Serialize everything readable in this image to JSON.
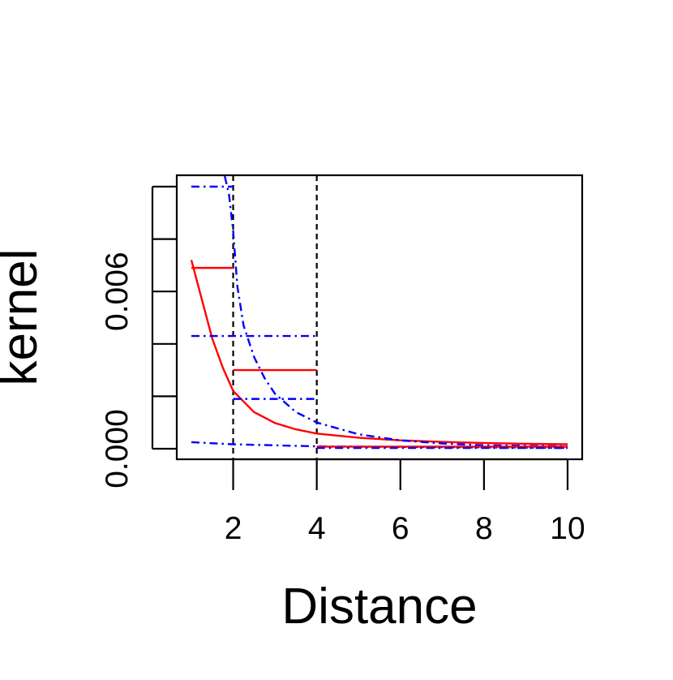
{
  "chart_data": {
    "type": "line",
    "title": "",
    "xlabel": "Distance",
    "ylabel": "kernel",
    "xlim": [
      1,
      10
    ],
    "ylim": [
      0,
      0.0102
    ],
    "x_ticks": [
      2,
      4,
      6,
      8,
      10
    ],
    "x_tick_labels": [
      "2",
      "4",
      "6",
      "8",
      "10"
    ],
    "y_ticks": [
      0,
      0.002,
      0.004,
      0.006,
      0.008,
      0.01
    ],
    "y_tick_labels": [
      "0.000",
      "",
      "",
      "0.006",
      "",
      ""
    ],
    "grid": false,
    "legend": null,
    "vlines": [
      2,
      4
    ],
    "series": [
      {
        "style": "solid",
        "color": "#ff0000",
        "x": [
          1.0,
          1.25,
          1.5,
          1.75,
          2.0,
          2.5,
          3.0,
          3.5,
          4.0,
          5.0,
          6.0,
          7.0,
          8.0,
          9.0,
          10.0
        ],
        "y": [
          0.0072,
          0.0057,
          0.0042,
          0.0031,
          0.0022,
          0.0014,
          0.00098,
          0.00074,
          0.00058,
          0.00042,
          0.00032,
          0.00026,
          0.00022,
          0.00019,
          0.00017
        ]
      },
      {
        "style": "dashdot",
        "color": "#0000ff",
        "x": [
          1.8,
          1.9,
          2.0,
          2.1,
          2.25,
          2.5,
          2.75,
          3.0,
          3.5,
          4.0,
          5.0,
          6.0,
          7.0,
          8.0,
          10.0
        ],
        "y": [
          0.0104,
          0.0097,
          0.0083,
          0.0062,
          0.0047,
          0.0035,
          0.0027,
          0.0021,
          0.0014,
          0.001,
          0.00055,
          0.00032,
          0.0002,
          0.00013,
          9e-05
        ]
      },
      {
        "style": "dashdot",
        "color": "#0000ff",
        "x": [
          1.0,
          2.0,
          4.0,
          10.0
        ],
        "y": [
          0.00025,
          0.00017,
          9e-05,
          3e-05
        ]
      }
    ],
    "segments": [
      {
        "color": "#ff0000",
        "style": "solid",
        "x": [
          1.0,
          2.0
        ],
        "y": 0.0069
      },
      {
        "color": "#ff0000",
        "style": "solid",
        "x": [
          2.0,
          4.0
        ],
        "y": 0.003
      },
      {
        "color": "#ff0000",
        "style": "solid",
        "x": [
          4.0,
          10.0
        ],
        "y": 8e-05
      },
      {
        "color": "#0000ff",
        "style": "dashdot",
        "x": [
          1.0,
          2.0
        ],
        "y": 0.01
      },
      {
        "color": "#0000ff",
        "style": "dashdot",
        "x": [
          1.0,
          4.0
        ],
        "y": 0.0043
      },
      {
        "color": "#0000ff",
        "style": "dashdot",
        "x": [
          2.0,
          4.0
        ],
        "y": 0.0019
      },
      {
        "color": "#0000ff",
        "style": "dashdot",
        "x": [
          4.0,
          10.0
        ],
        "y": 3e-05
      }
    ]
  }
}
